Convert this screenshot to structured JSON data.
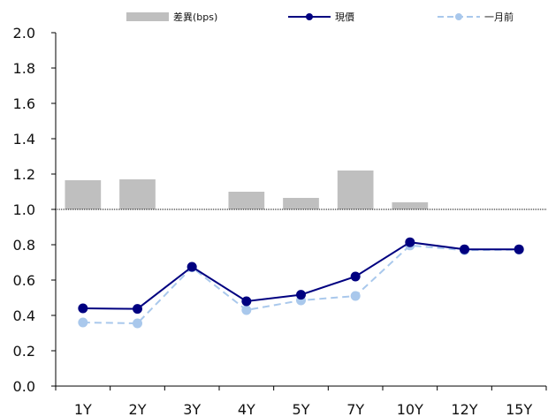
{
  "chart_data": {
    "type": "bar+line",
    "categories": [
      "1Y",
      "2Y",
      "3Y",
      "4Y",
      "5Y",
      "7Y",
      "10Y",
      "12Y",
      "15Y"
    ],
    "ylim": [
      0.0,
      2.0
    ],
    "y_ticks": [
      "0.0",
      "0.2",
      "0.4",
      "0.6",
      "0.8",
      "1.0",
      "1.2",
      "1.4",
      "1.6",
      "1.8",
      "2.0"
    ],
    "bar_baseline": 1.0,
    "grid": false,
    "legend_position": "top",
    "series": [
      {
        "name": "差異(bps)",
        "type": "bar",
        "color": "#bfbfbf",
        "values": [
          1.165,
          1.17,
          1.0,
          1.1,
          1.065,
          1.22,
          1.04,
          1.0,
          1.0
        ]
      },
      {
        "name": "現價",
        "type": "line",
        "color": "#000080",
        "style": "solid",
        "values": [
          0.44,
          0.437,
          0.675,
          0.48,
          0.517,
          0.62,
          0.814,
          0.774,
          0.774
        ]
      },
      {
        "name": "一月前",
        "type": "line",
        "color": "#a9c8ec",
        "style": "dashed",
        "values": [
          0.36,
          0.355,
          0.672,
          0.43,
          0.485,
          0.51,
          0.796,
          0.769,
          0.772
        ]
      }
    ]
  }
}
